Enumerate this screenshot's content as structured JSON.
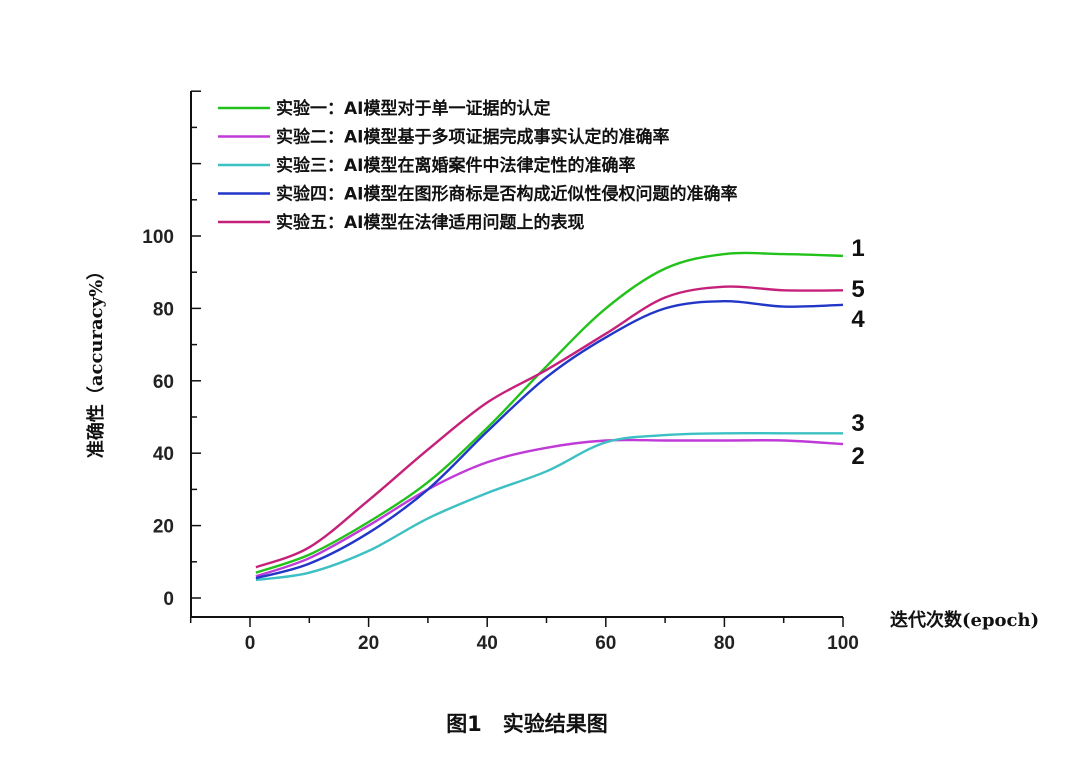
{
  "chart_data": {
    "type": "line",
    "ylabel": "准确性（accuracy%）",
    "xlabel": "迭代次数(epoch)",
    "caption": "图1　实验结果图",
    "xlim": [
      -10,
      100
    ],
    "ylim": [
      -5,
      140
    ],
    "xticks": [
      0,
      20,
      40,
      60,
      80,
      100
    ],
    "yticks": [
      0,
      20,
      40,
      60,
      80,
      100
    ],
    "x": [
      1,
      10,
      20,
      30,
      40,
      50,
      60,
      70,
      80,
      90,
      100
    ],
    "legend_position": "top-left",
    "series": [
      {
        "name": "实验一：AI模型对于单一证据的认定",
        "color": "#22c21a",
        "end_label": "1",
        "values": [
          7,
          12,
          21,
          32,
          47,
          64,
          80,
          91,
          95,
          95,
          94.5
        ]
      },
      {
        "name": "实验二：AI模型基于多项证据完成事实认定的准确率",
        "color": "#c03ad8",
        "end_label": "2",
        "values": [
          6,
          11,
          20,
          30,
          37.5,
          41.5,
          43.5,
          43.5,
          43.5,
          43.5,
          42.5
        ]
      },
      {
        "name": "实验三：AI模型在离婚案件中法律定性的准确率",
        "color": "#3cc0c4",
        "end_label": "3",
        "values": [
          5,
          7,
          13,
          22,
          29,
          35,
          43,
          45,
          45.5,
          45.5,
          45.5
        ]
      },
      {
        "name": "实验四：AI模型在图形商标是否构成近似性侵权问题的准确率",
        "color": "#2237c8",
        "end_label": "4",
        "values": [
          5.5,
          9.5,
          18,
          30,
          46,
          61,
          72,
          80,
          82,
          80.5,
          81
        ]
      },
      {
        "name": "实验五：AI模型在法律适用问题上的表现",
        "color": "#c5217a",
        "end_label": "5",
        "values": [
          8.5,
          14,
          27,
          41,
          54,
          63,
          73,
          83,
          86,
          85,
          85
        ]
      }
    ]
  }
}
